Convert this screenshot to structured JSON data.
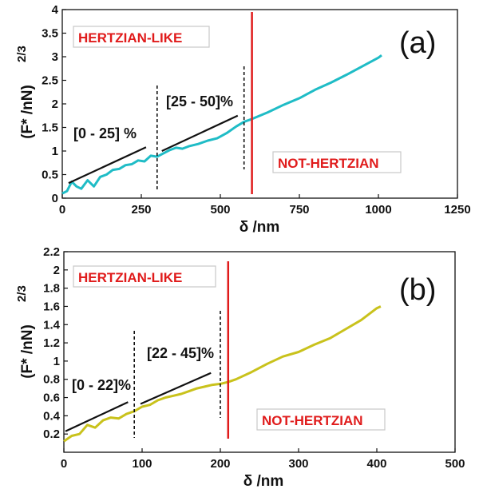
{
  "colors": {
    "series_a": "#1fbcc6",
    "series_b": "#c9c21c",
    "red": "#e01b1b",
    "black": "#111111"
  },
  "chart_data": [
    {
      "type": "line",
      "panel_label": "(a)",
      "xlabel": "δ /nm",
      "ylabel": "(F* /nN)",
      "ylabel_exp": "2/3",
      "xlim": [
        0,
        1250
      ],
      "ylim": [
        0,
        4
      ],
      "xticks": [
        0,
        250,
        500,
        750,
        1000,
        1250
      ],
      "yticks": [
        0,
        0.5,
        1,
        1.5,
        2,
        2.5,
        3,
        3.5,
        4
      ],
      "grid": false,
      "series": [
        {
          "x": [
            0,
            15,
            30,
            45,
            60,
            80,
            100,
            120,
            140,
            160,
            180,
            200,
            220,
            240,
            260,
            280,
            300,
            320,
            340,
            360,
            380,
            400,
            430,
            460,
            490,
            520,
            550,
            575,
            600,
            650,
            700,
            750,
            800,
            850,
            900,
            950,
            1000,
            1010
          ],
          "y": [
            0.1,
            0.15,
            0.35,
            0.25,
            0.2,
            0.38,
            0.25,
            0.45,
            0.5,
            0.6,
            0.62,
            0.7,
            0.72,
            0.8,
            0.78,
            0.9,
            0.88,
            0.95,
            1.02,
            1.07,
            1.05,
            1.1,
            1.15,
            1.22,
            1.27,
            1.38,
            1.52,
            1.62,
            1.68,
            1.82,
            1.98,
            2.12,
            2.3,
            2.45,
            2.62,
            2.8,
            2.98,
            3.03
          ]
        }
      ],
      "fit_lines": [
        {
          "x": [
            20,
            265
          ],
          "y": [
            0.32,
            1.08
          ]
        },
        {
          "x": [
            315,
            555
          ],
          "y": [
            1.0,
            1.75
          ]
        }
      ],
      "dashed_lines_x": [
        300,
        575
      ],
      "red_line_x": 600,
      "annotations": {
        "region1": "[0 - 25] %",
        "region2": "[25 - 50]%",
        "hertzian": "HERTZIAN-LIKE",
        "not_hertzian": "NOT-HERTZIAN"
      }
    },
    {
      "type": "line",
      "panel_label": "(b)",
      "xlabel": "δ /nm",
      "ylabel": "(F* /nN)",
      "ylabel_exp": "2/3",
      "xlim": [
        0,
        500
      ],
      "ylim": [
        0,
        2.2
      ],
      "xticks": [
        0,
        100,
        200,
        300,
        400,
        500
      ],
      "yticks": [
        0.2,
        0.4,
        0.6,
        0.8,
        1,
        1.2,
        1.4,
        1.6,
        1.8,
        2,
        2.2
      ],
      "grid": false,
      "series": [
        {
          "x": [
            0,
            10,
            20,
            30,
            40,
            50,
            60,
            70,
            80,
            90,
            100,
            110,
            120,
            130,
            140,
            150,
            160,
            170,
            180,
            190,
            200,
            210,
            220,
            240,
            260,
            280,
            300,
            320,
            340,
            360,
            380,
            400,
            405
          ],
          "y": [
            0.12,
            0.18,
            0.2,
            0.3,
            0.27,
            0.35,
            0.38,
            0.37,
            0.42,
            0.45,
            0.5,
            0.52,
            0.57,
            0.6,
            0.62,
            0.64,
            0.67,
            0.7,
            0.72,
            0.74,
            0.75,
            0.77,
            0.8,
            0.88,
            0.97,
            1.05,
            1.1,
            1.18,
            1.25,
            1.35,
            1.45,
            1.58,
            1.6
          ]
        }
      ],
      "fit_lines": [
        {
          "x": [
            2,
            82
          ],
          "y": [
            0.23,
            0.55
          ]
        },
        {
          "x": [
            98,
            188
          ],
          "y": [
            0.53,
            0.87
          ]
        }
      ],
      "dashed_lines_x": [
        90,
        200
      ],
      "red_line_x": 210,
      "annotations": {
        "region1": "[0 - 22]%",
        "region2": "[22 - 45]%",
        "hertzian": "HERTZIAN-LIKE",
        "not_hertzian": "NOT-HERTZIAN"
      }
    }
  ]
}
